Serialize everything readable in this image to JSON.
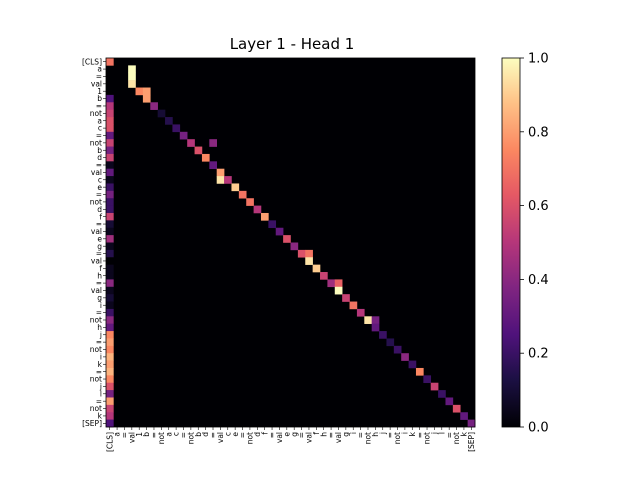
{
  "chart_data": {
    "type": "heatmap",
    "title": "Layer 1 - Head 1",
    "colormap": "magma",
    "tokens": [
      "[CLS]",
      "a",
      "=",
      "val",
      "1",
      "b",
      "=",
      "not",
      "a",
      "c",
      "=",
      "not",
      "b",
      "d",
      "=",
      "val",
      "c",
      "e",
      "=",
      "not",
      "d",
      "f",
      "=",
      "val",
      "e",
      "g",
      "=",
      "val",
      "f",
      "h",
      "=",
      "val",
      "g",
      "i",
      "=",
      "not",
      "h",
      "j",
      "=",
      "not",
      "i",
      "k",
      "=",
      "not",
      "j",
      "l",
      "=",
      "not",
      "k",
      "[SEP]"
    ],
    "x_tick_labels": [
      "[CLS]",
      "a",
      "=",
      "val",
      "1",
      "b",
      "=",
      "not",
      "a",
      "c",
      "=",
      "not",
      "b",
      "d",
      "=",
      "val",
      "c",
      "e",
      "=",
      "not",
      "d",
      "f",
      "=",
      "val",
      "e",
      "g",
      "=",
      "val",
      "f",
      "h",
      "=",
      "val",
      "g",
      "i",
      "=",
      "not",
      "h",
      "j",
      "=",
      "not",
      "i",
      "k",
      "=",
      "not",
      "j",
      "l",
      "=",
      "not",
      "k",
      "[SEP]"
    ],
    "y_tick_labels": [
      "[CLS]",
      "a",
      "=",
      "val",
      "1",
      "b",
      "=",
      "not",
      "a",
      "c",
      "=",
      "not",
      "b",
      "d",
      "=",
      "val",
      "c",
      "e",
      "=",
      "not",
      "d",
      "f",
      "=",
      "val",
      "e",
      "g",
      "=",
      "val",
      "f",
      "h",
      "=",
      "val",
      "g",
      "i",
      "=",
      "not",
      "h",
      "j",
      "=",
      "not",
      "i",
      "k",
      "=",
      "not",
      "j",
      "l",
      "=",
      "not",
      "k",
      "[SEP]"
    ],
    "colorbar": {
      "vmin": 0.0,
      "vmax": 1.0,
      "ticks": [
        "0.0",
        "0.2",
        "0.4",
        "0.6",
        "0.8",
        "1.0"
      ]
    },
    "cells": [
      [
        0,
        0,
        0.7
      ],
      [
        1,
        3,
        1.0
      ],
      [
        2,
        3,
        1.0
      ],
      [
        3,
        3,
        0.95
      ],
      [
        4,
        4,
        0.75
      ],
      [
        4,
        5,
        0.8
      ],
      [
        5,
        5,
        0.8
      ],
      [
        5,
        0,
        0.25
      ],
      [
        6,
        0,
        0.5
      ],
      [
        6,
        6,
        0.4
      ],
      [
        7,
        0,
        0.55
      ],
      [
        7,
        7,
        0.1
      ],
      [
        8,
        0,
        0.6
      ],
      [
        8,
        8,
        0.15
      ],
      [
        9,
        0,
        0.6
      ],
      [
        9,
        9,
        0.2
      ],
      [
        10,
        0,
        0.3
      ],
      [
        10,
        10,
        0.35
      ],
      [
        11,
        0,
        0.55
      ],
      [
        11,
        11,
        0.5
      ],
      [
        11,
        14,
        0.4
      ],
      [
        12,
        0,
        0.35
      ],
      [
        12,
        12,
        0.6
      ],
      [
        13,
        0,
        0.55
      ],
      [
        13,
        13,
        0.75
      ],
      [
        14,
        0,
        0.05
      ],
      [
        14,
        14,
        0.3
      ],
      [
        15,
        0,
        0.3
      ],
      [
        15,
        15,
        0.8
      ],
      [
        16,
        0,
        0.05
      ],
      [
        16,
        15,
        0.95
      ],
      [
        16,
        16,
        0.5
      ],
      [
        17,
        0,
        0.2
      ],
      [
        17,
        17,
        0.9
      ],
      [
        18,
        0,
        0.35
      ],
      [
        18,
        18,
        0.7
      ],
      [
        19,
        0,
        0.2
      ],
      [
        19,
        19,
        0.7
      ],
      [
        20,
        0,
        0.2
      ],
      [
        20,
        20,
        0.5
      ],
      [
        21,
        0,
        0.55
      ],
      [
        21,
        21,
        0.8
      ],
      [
        22,
        0,
        0.1
      ],
      [
        22,
        22,
        0.2
      ],
      [
        23,
        0,
        0.05
      ],
      [
        23,
        23,
        0.3
      ],
      [
        24,
        0,
        0.45
      ],
      [
        24,
        24,
        0.6
      ],
      [
        25,
        0,
        0.05
      ],
      [
        25,
        25,
        0.4
      ],
      [
        26,
        0,
        0.15
      ],
      [
        26,
        26,
        0.6
      ],
      [
        26,
        27,
        0.7
      ],
      [
        27,
        0,
        0.0
      ],
      [
        27,
        27,
        0.95
      ],
      [
        28,
        0,
        0.05
      ],
      [
        28,
        28,
        0.9
      ],
      [
        29,
        0,
        0.05
      ],
      [
        29,
        29,
        0.55
      ],
      [
        30,
        0,
        0.4
      ],
      [
        30,
        30,
        0.45
      ],
      [
        30,
        31,
        0.65
      ],
      [
        31,
        0,
        0.05
      ],
      [
        31,
        31,
        1.0
      ],
      [
        32,
        0,
        0.1
      ],
      [
        32,
        32,
        0.55
      ],
      [
        33,
        0,
        0.05
      ],
      [
        33,
        33,
        0.7
      ],
      [
        34,
        0,
        0.2
      ],
      [
        34,
        34,
        0.5
      ],
      [
        35,
        0,
        0.4
      ],
      [
        35,
        35,
        0.95
      ],
      [
        35,
        36,
        0.35
      ],
      [
        36,
        0,
        0.3
      ],
      [
        36,
        36,
        0.3
      ],
      [
        37,
        0,
        0.75
      ],
      [
        37,
        37,
        0.2
      ],
      [
        38,
        0,
        0.8
      ],
      [
        38,
        38,
        0.15
      ],
      [
        39,
        0,
        0.75
      ],
      [
        39,
        39,
        0.2
      ],
      [
        40,
        0,
        0.85
      ],
      [
        40,
        40,
        0.4
      ],
      [
        41,
        0,
        0.8
      ],
      [
        41,
        41,
        0.2
      ],
      [
        42,
        0,
        0.85
      ],
      [
        42,
        42,
        0.75
      ],
      [
        43,
        0,
        0.75
      ],
      [
        43,
        43,
        0.2
      ],
      [
        44,
        0,
        0.6
      ],
      [
        44,
        44,
        0.55
      ],
      [
        45,
        0,
        0.35
      ],
      [
        45,
        45,
        0.2
      ],
      [
        46,
        0,
        0.8
      ],
      [
        46,
        46,
        0.3
      ],
      [
        47,
        0,
        0.55
      ],
      [
        47,
        47,
        0.6
      ],
      [
        48,
        0,
        0.5
      ],
      [
        48,
        48,
        0.3
      ],
      [
        49,
        0,
        0.25
      ],
      [
        49,
        49,
        0.35
      ]
    ]
  }
}
